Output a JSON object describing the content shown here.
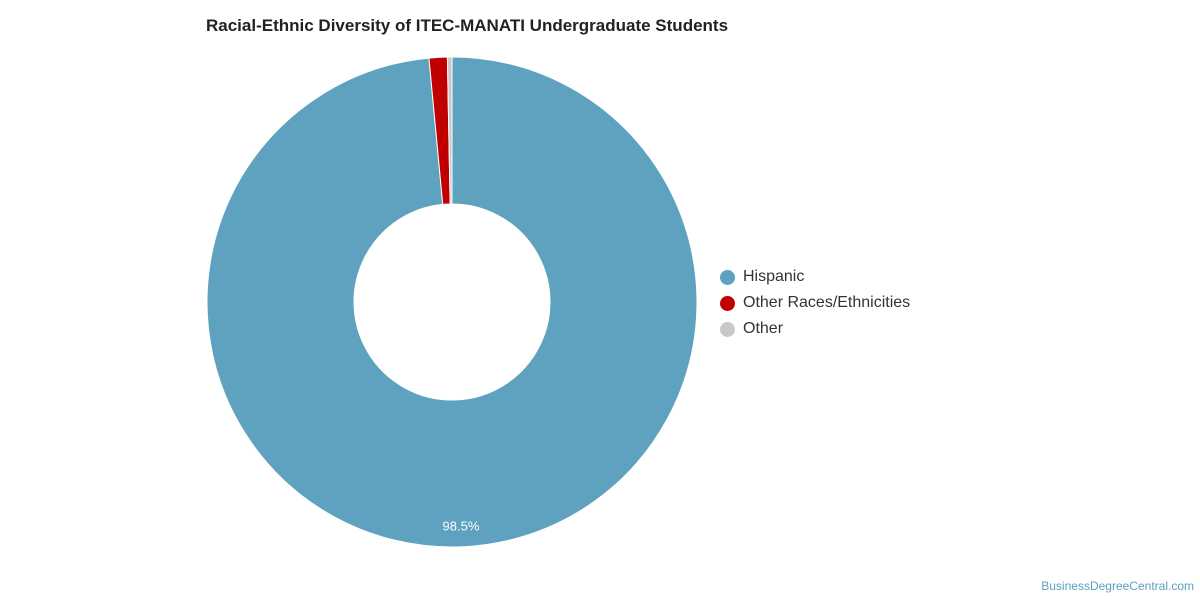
{
  "chart_data": {
    "type": "pie",
    "title": "Racial-Ethnic Diversity of ITEC-MANATI Undergraduate Students",
    "donut": true,
    "legend_position": "right",
    "slices": [
      {
        "label": "Hispanic",
        "value": 98.5,
        "display": "98.5%",
        "color": "#5ea2bf"
      },
      {
        "label": "Other Races/Ethnicities",
        "value": 1.2,
        "display": "",
        "color": "#c00000"
      },
      {
        "label": "Other",
        "value": 0.3,
        "display": "",
        "color": "#c8c8c8"
      }
    ]
  },
  "credit": "BusinessDegreeCentral.com"
}
